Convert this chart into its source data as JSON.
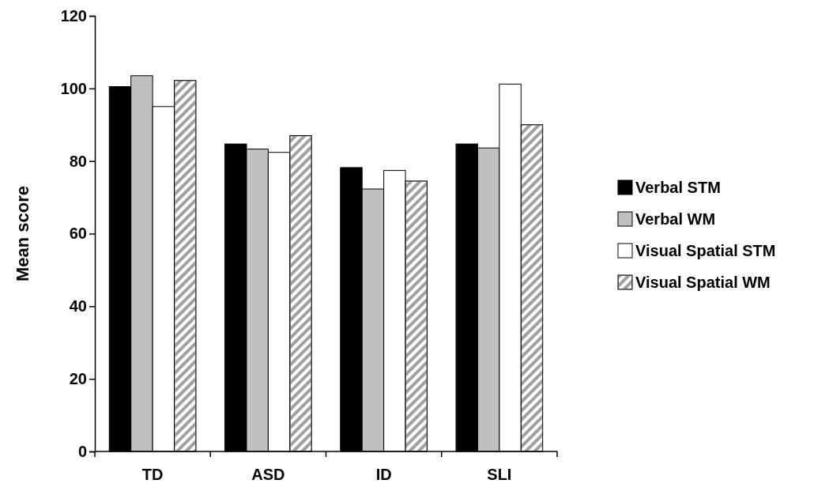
{
  "chart_data": {
    "type": "bar",
    "ylabel": "Mean score",
    "categories": [
      "TD",
      "ASD",
      "ID",
      "SLI"
    ],
    "series": [
      {
        "name": "Verbal STM",
        "color": "#000000",
        "values": [
          100.5,
          84.7,
          78.2,
          84.7
        ]
      },
      {
        "name": "Verbal WM",
        "color": "#c0c0c0",
        "values": [
          103.5,
          83.3,
          72.3,
          83.6
        ]
      },
      {
        "name": "Visual Spatial STM",
        "color": "#ffffff",
        "values": [
          95,
          82.4,
          77.4,
          101.2
        ]
      },
      {
        "name": "Visual Spatial WM",
        "color": "#a0a0a0",
        "values": [
          102.2,
          87,
          74.5,
          90
        ]
      }
    ],
    "ylim": [
      0,
      120
    ],
    "yticks": [
      0,
      20,
      40,
      60,
      80,
      100,
      120
    ],
    "grid": false,
    "legend": "right"
  }
}
